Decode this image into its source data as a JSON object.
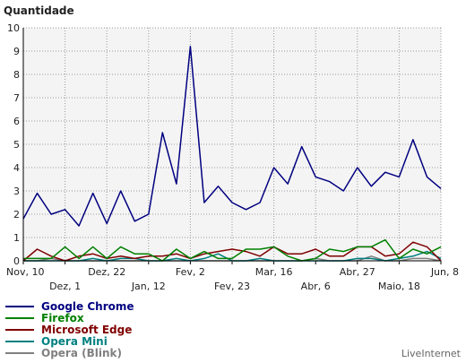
{
  "chart_data": {
    "type": "line",
    "title": "Quantidade",
    "xlabel": "",
    "ylabel": "",
    "ylim": [
      0,
      10
    ],
    "yticks": [
      "0",
      "1",
      "2",
      "3",
      "4",
      "5",
      "6",
      "7",
      "8",
      "9",
      "10"
    ],
    "grid": true,
    "legend_position": "bottom-left",
    "credit": "LiveInternet",
    "x_tick_labels": [
      {
        "label": "Nov, 10",
        "index": 0,
        "row": 1
      },
      {
        "label": "Dez, 1",
        "index": 3,
        "row": 2
      },
      {
        "label": "Dez, 22",
        "index": 6,
        "row": 1
      },
      {
        "label": "Jan, 12",
        "index": 9,
        "row": 2
      },
      {
        "label": "Fev, 2",
        "index": 12,
        "row": 1
      },
      {
        "label": "Fev, 23",
        "index": 15,
        "row": 2
      },
      {
        "label": "Mar, 16",
        "index": 18,
        "row": 1
      },
      {
        "label": "Abr, 6",
        "index": 21,
        "row": 2
      },
      {
        "label": "Abr, 27",
        "index": 24,
        "row": 1
      },
      {
        "label": "Maio, 18",
        "index": 27,
        "row": 2
      },
      {
        "label": "Jun, 8",
        "index": 30,
        "row": 1
      }
    ],
    "series": [
      {
        "name": "Google Chrome",
        "color": "#000080",
        "values": [
          1.8,
          2.9,
          2.0,
          2.2,
          1.5,
          2.9,
          1.6,
          3.0,
          1.7,
          2.0,
          5.5,
          3.3,
          9.2,
          2.5,
          3.2,
          2.5,
          2.2,
          2.5,
          4.0,
          3.3,
          4.9,
          3.6,
          3.4,
          3.0,
          4.0,
          3.2,
          3.8,
          3.6,
          5.2,
          3.6,
          3.1
        ]
      },
      {
        "name": "Firefox",
        "color": "#008000",
        "values": [
          0.1,
          0.1,
          0.1,
          0.6,
          0.1,
          0.6,
          0.1,
          0.6,
          0.3,
          0.3,
          0.0,
          0.5,
          0.1,
          0.4,
          0.1,
          0.1,
          0.5,
          0.5,
          0.6,
          0.2,
          0.0,
          0.1,
          0.5,
          0.4,
          0.6,
          0.6,
          0.9,
          0.1,
          0.5,
          0.3,
          0.6
        ]
      },
      {
        "name": "Microsoft Edge",
        "color": "#800000",
        "values": [
          0.0,
          0.5,
          0.2,
          0.0,
          0.2,
          0.3,
          0.1,
          0.2,
          0.1,
          0.2,
          0.2,
          0.3,
          0.1,
          0.3,
          0.4,
          0.5,
          0.4,
          0.2,
          0.6,
          0.3,
          0.3,
          0.5,
          0.2,
          0.2,
          0.6,
          0.6,
          0.2,
          0.3,
          0.8,
          0.6,
          0.0
        ]
      },
      {
        "name": "Opera Mini",
        "color": "#008080",
        "values": [
          0.0,
          0.0,
          0.0,
          0.0,
          0.0,
          0.1,
          0.0,
          0.1,
          0.1,
          0.0,
          0.0,
          0.1,
          0.0,
          0.1,
          0.3,
          0.0,
          0.0,
          0.1,
          0.0,
          0.0,
          0.0,
          0.0,
          0.0,
          0.0,
          0.1,
          0.1,
          0.0,
          0.1,
          0.2,
          0.4,
          0.1
        ]
      },
      {
        "name": "Opera (Blink)",
        "color": "#808080",
        "values": [
          0.0,
          0.0,
          0.1,
          0.0,
          0.0,
          0.0,
          0.0,
          0.0,
          0.0,
          0.0,
          0.0,
          0.0,
          0.0,
          0.0,
          0.0,
          0.0,
          0.0,
          0.0,
          0.0,
          0.0,
          0.0,
          0.1,
          0.0,
          0.0,
          0.0,
          0.2,
          0.0,
          0.0,
          0.1,
          0.1,
          0.0
        ]
      }
    ]
  }
}
